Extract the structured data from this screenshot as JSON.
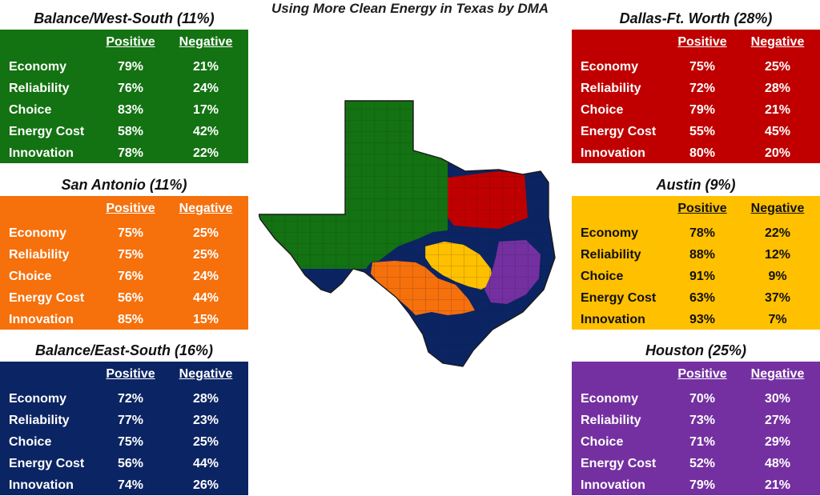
{
  "title": "Using More Clean Energy in Texas by DMA",
  "columns": {
    "positive": "Positive",
    "negative": "Negative"
  },
  "colors": {
    "west_south": "#137212",
    "san_antonio": "#f6700c",
    "east_south": "#0b2463",
    "dallas": "#c00000",
    "austin": "#ffc000",
    "houston": "#7430a0"
  },
  "panels": {
    "west_south": {
      "title": "Balance/West-South (11%)",
      "rows": [
        {
          "label": "Economy",
          "positive": "79%",
          "negative": "21%"
        },
        {
          "label": "Reliability",
          "positive": "76%",
          "negative": "24%"
        },
        {
          "label": "Choice",
          "positive": "83%",
          "negative": "17%"
        },
        {
          "label": "Energy Cost",
          "positive": "58%",
          "negative": "42%"
        },
        {
          "label": "Innovation",
          "positive": "78%",
          "negative": "22%"
        }
      ]
    },
    "san_antonio": {
      "title": "San Antonio (11%)",
      "rows": [
        {
          "label": "Economy",
          "positive": "75%",
          "negative": "25%"
        },
        {
          "label": "Reliability",
          "positive": "75%",
          "negative": "25%"
        },
        {
          "label": "Choice",
          "positive": "76%",
          "negative": "24%"
        },
        {
          "label": "Energy Cost",
          "positive": "56%",
          "negative": "44%"
        },
        {
          "label": "Innovation",
          "positive": "85%",
          "negative": "15%"
        }
      ]
    },
    "east_south": {
      "title": "Balance/East-South (16%)",
      "rows": [
        {
          "label": "Economy",
          "positive": "72%",
          "negative": "28%"
        },
        {
          "label": "Reliability",
          "positive": "77%",
          "negative": "23%"
        },
        {
          "label": "Choice",
          "positive": "75%",
          "negative": "25%"
        },
        {
          "label": "Energy Cost",
          "positive": "56%",
          "negative": "44%"
        },
        {
          "label": "Innovation",
          "positive": "74%",
          "negative": "26%"
        }
      ]
    },
    "dallas": {
      "title": "Dallas-Ft. Worth (28%)",
      "rows": [
        {
          "label": "Economy",
          "positive": "75%",
          "negative": "25%"
        },
        {
          "label": "Reliability",
          "positive": "72%",
          "negative": "28%"
        },
        {
          "label": "Choice",
          "positive": "79%",
          "negative": "21%"
        },
        {
          "label": "Energy Cost",
          "positive": "55%",
          "negative": "45%"
        },
        {
          "label": "Innovation",
          "positive": "80%",
          "negative": "20%"
        }
      ]
    },
    "austin": {
      "title": "Austin (9%)",
      "rows": [
        {
          "label": "Economy",
          "positive": "78%",
          "negative": "22%"
        },
        {
          "label": "Reliability",
          "positive": "88%",
          "negative": "12%"
        },
        {
          "label": "Choice",
          "positive": "91%",
          "negative": "9%"
        },
        {
          "label": "Energy Cost",
          "positive": "63%",
          "negative": "37%"
        },
        {
          "label": "Innovation",
          "positive": "93%",
          "negative": "7%"
        }
      ]
    },
    "houston": {
      "title": "Houston (25%)",
      "rows": [
        {
          "label": "Economy",
          "positive": "70%",
          "negative": "30%"
        },
        {
          "label": "Reliability",
          "positive": "73%",
          "negative": "27%"
        },
        {
          "label": "Choice",
          "positive": "71%",
          "negative": "29%"
        },
        {
          "label": "Energy Cost",
          "positive": "52%",
          "negative": "48%"
        },
        {
          "label": "Innovation",
          "positive": "79%",
          "negative": "21%"
        }
      ]
    }
  }
}
